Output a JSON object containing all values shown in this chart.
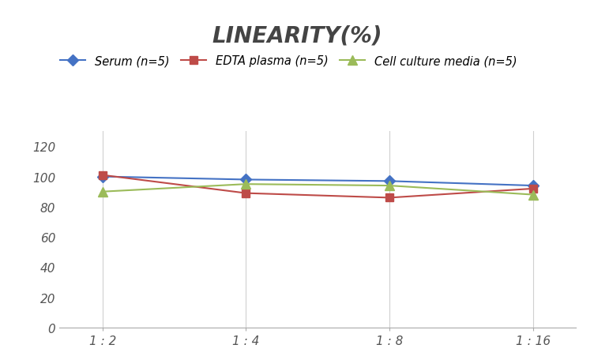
{
  "title": "LINEARITY(%)",
  "x_labels": [
    "1 : 2",
    "1 : 4",
    "1 : 8",
    "1 : 16"
  ],
  "x_positions": [
    0,
    1,
    2,
    3
  ],
  "series": [
    {
      "label": "Serum (n=5)",
      "values": [
        100,
        98,
        97,
        94
      ],
      "color": "#4472C4",
      "marker": "D",
      "markersize": 7,
      "linewidth": 1.5
    },
    {
      "label": "EDTA plasma (n=5)",
      "values": [
        101,
        89,
        86,
        92
      ],
      "color": "#BE4B48",
      "marker": "s",
      "markersize": 7,
      "linewidth": 1.5
    },
    {
      "label": "Cell culture media (n=5)",
      "values": [
        90,
        95,
        94,
        88
      ],
      "color": "#9BBB59",
      "marker": "^",
      "markersize": 8,
      "linewidth": 1.5
    }
  ],
  "ylim": [
    0,
    130
  ],
  "yticks": [
    0,
    20,
    40,
    60,
    80,
    100,
    120
  ],
  "background_color": "#ffffff",
  "title_fontsize": 20,
  "legend_fontsize": 10.5,
  "tick_fontsize": 11,
  "grid_color": "#d0d0d0",
  "grid_linewidth": 0.8
}
